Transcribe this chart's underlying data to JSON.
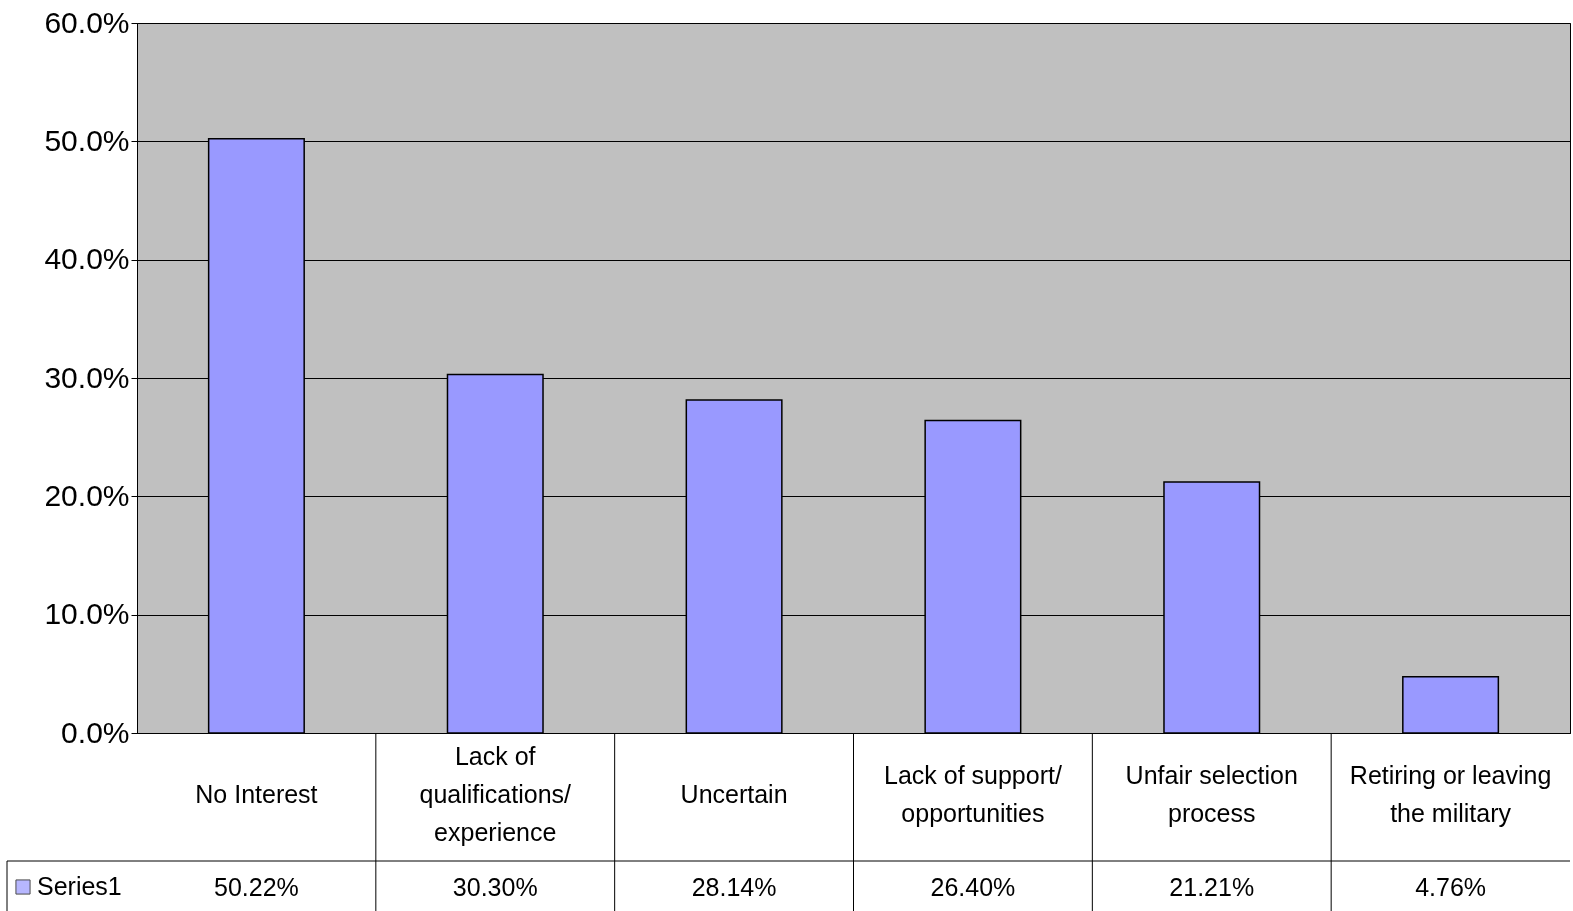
{
  "chart_data": {
    "type": "bar",
    "categories": [
      "No Interest",
      "Lack of qualifications/ experience",
      "Uncertain",
      "Lack of support/ opportunities",
      "Unfair selection process",
      "Retiring or leaving the military"
    ],
    "series": [
      {
        "name": "Series1",
        "color": "#9999ff",
        "values": [
          50.22,
          30.3,
          28.14,
          26.4,
          21.21,
          4.76
        ],
        "value_labels": [
          "50.22%",
          "30.30%",
          "28.14%",
          "26.40%",
          "21.21%",
          "4.76%"
        ]
      }
    ],
    "ylim": [
      0,
      60
    ],
    "yticks": [
      {
        "value": 0,
        "label": "0.0%"
      },
      {
        "value": 10,
        "label": "10.0%"
      },
      {
        "value": 20,
        "label": "20.0%"
      },
      {
        "value": 30,
        "label": "30.0%"
      },
      {
        "value": 40,
        "label": "40.0%"
      },
      {
        "value": 50,
        "label": "50.0%"
      },
      {
        "value": 60,
        "label": "60.0%"
      }
    ],
    "grid": "y",
    "legend": "bottom left"
  }
}
